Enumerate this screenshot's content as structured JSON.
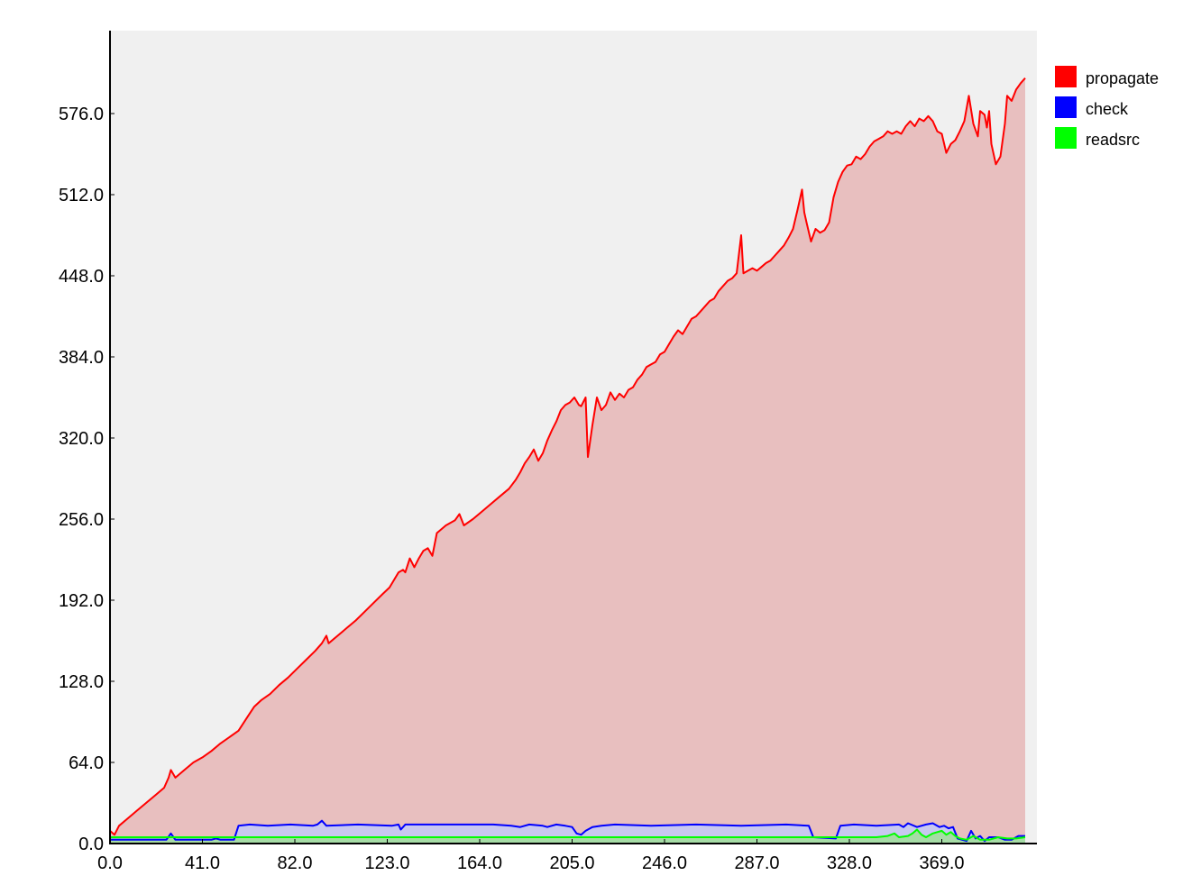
{
  "chart_data": {
    "type": "area",
    "title": "",
    "xlabel": "",
    "ylabel": "",
    "xlim": [
      0,
      410
    ],
    "ylim": [
      0,
      630
    ],
    "x_ticks": [
      "0.0",
      "41.0",
      "82.0",
      "123.0",
      "164.0",
      "205.0",
      "246.0",
      "287.0",
      "328.0",
      "369.0"
    ],
    "y_ticks": [
      "0.0",
      "64.0",
      "128.0",
      "192.0",
      "256.0",
      "320.0",
      "384.0",
      "448.0",
      "512.0",
      "576.0"
    ],
    "legend_position": "top-right",
    "background": "#f0f0f0",
    "series": [
      {
        "name": "propagate",
        "color": "#ff0000",
        "fill": "#e8bfbf",
        "points": [
          [
            0,
            10
          ],
          [
            2,
            7
          ],
          [
            4,
            14
          ],
          [
            8,
            20
          ],
          [
            12,
            26
          ],
          [
            16,
            32
          ],
          [
            20,
            38
          ],
          [
            24,
            44
          ],
          [
            26,
            52
          ],
          [
            27,
            58
          ],
          [
            29,
            52
          ],
          [
            33,
            58
          ],
          [
            37,
            64
          ],
          [
            41,
            68
          ],
          [
            45,
            73
          ],
          [
            49,
            79
          ],
          [
            53,
            84
          ],
          [
            57,
            89
          ],
          [
            61,
            100
          ],
          [
            64,
            108
          ],
          [
            67,
            113
          ],
          [
            71,
            118
          ],
          [
            75,
            125
          ],
          [
            79,
            131
          ],
          [
            83,
            138
          ],
          [
            87,
            145
          ],
          [
            91,
            152
          ],
          [
            94,
            158
          ],
          [
            96,
            164
          ],
          [
            97,
            158
          ],
          [
            101,
            164
          ],
          [
            105,
            170
          ],
          [
            109,
            176
          ],
          [
            113,
            183
          ],
          [
            117,
            190
          ],
          [
            121,
            197
          ],
          [
            124,
            202
          ],
          [
            126,
            208
          ],
          [
            128,
            214
          ],
          [
            130,
            216
          ],
          [
            131,
            214
          ],
          [
            133,
            225
          ],
          [
            135,
            218
          ],
          [
            137,
            225
          ],
          [
            139,
            231
          ],
          [
            141,
            233
          ],
          [
            143,
            227
          ],
          [
            145,
            245
          ],
          [
            149,
            251
          ],
          [
            153,
            255
          ],
          [
            155,
            260
          ],
          [
            157,
            251
          ],
          [
            161,
            256
          ],
          [
            165,
            262
          ],
          [
            169,
            268
          ],
          [
            173,
            274
          ],
          [
            177,
            280
          ],
          [
            180,
            287
          ],
          [
            182,
            293
          ],
          [
            184,
            300
          ],
          [
            186,
            305
          ],
          [
            188,
            311
          ],
          [
            190,
            302
          ],
          [
            192,
            308
          ],
          [
            194,
            318
          ],
          [
            196,
            326
          ],
          [
            198,
            333
          ],
          [
            200,
            342
          ],
          [
            202,
            346
          ],
          [
            204,
            348
          ],
          [
            206,
            352
          ],
          [
            208,
            346
          ],
          [
            209,
            345
          ],
          [
            211,
            352
          ],
          [
            212,
            305
          ],
          [
            214,
            330
          ],
          [
            216,
            352
          ],
          [
            218,
            342
          ],
          [
            220,
            346
          ],
          [
            222,
            356
          ],
          [
            224,
            350
          ],
          [
            226,
            355
          ],
          [
            228,
            352
          ],
          [
            230,
            358
          ],
          [
            232,
            360
          ],
          [
            234,
            366
          ],
          [
            236,
            370
          ],
          [
            238,
            376
          ],
          [
            240,
            378
          ],
          [
            242,
            380
          ],
          [
            244,
            386
          ],
          [
            246,
            388
          ],
          [
            248,
            394
          ],
          [
            250,
            400
          ],
          [
            252,
            405
          ],
          [
            254,
            402
          ],
          [
            256,
            408
          ],
          [
            258,
            414
          ],
          [
            260,
            416
          ],
          [
            262,
            420
          ],
          [
            264,
            424
          ],
          [
            266,
            428
          ],
          [
            268,
            430
          ],
          [
            270,
            436
          ],
          [
            272,
            440
          ],
          [
            274,
            444
          ],
          [
            276,
            446
          ],
          [
            278,
            450
          ],
          [
            280,
            480
          ],
          [
            281,
            450
          ],
          [
            283,
            452
          ],
          [
            285,
            454
          ],
          [
            287,
            452
          ],
          [
            289,
            455
          ],
          [
            291,
            458
          ],
          [
            293,
            460
          ],
          [
            295,
            464
          ],
          [
            297,
            468
          ],
          [
            299,
            472
          ],
          [
            301,
            478
          ],
          [
            303,
            485
          ],
          [
            305,
            500
          ],
          [
            307,
            516
          ],
          [
            308,
            498
          ],
          [
            309,
            490
          ],
          [
            311,
            475
          ],
          [
            313,
            485
          ],
          [
            315,
            482
          ],
          [
            317,
            484
          ],
          [
            319,
            490
          ],
          [
            321,
            510
          ],
          [
            323,
            522
          ],
          [
            325,
            530
          ],
          [
            327,
            535
          ],
          [
            329,
            536
          ],
          [
            331,
            542
          ],
          [
            333,
            540
          ],
          [
            335,
            544
          ],
          [
            337,
            550
          ],
          [
            339,
            554
          ],
          [
            341,
            556
          ],
          [
            343,
            558
          ],
          [
            345,
            562
          ],
          [
            347,
            560
          ],
          [
            349,
            562
          ],
          [
            351,
            560
          ],
          [
            353,
            566
          ],
          [
            355,
            570
          ],
          [
            357,
            566
          ],
          [
            359,
            572
          ],
          [
            361,
            570
          ],
          [
            363,
            574
          ],
          [
            365,
            570
          ],
          [
            367,
            562
          ],
          [
            369,
            560
          ],
          [
            371,
            545
          ],
          [
            373,
            552
          ],
          [
            375,
            555
          ],
          [
            377,
            562
          ],
          [
            379,
            570
          ],
          [
            381,
            590
          ],
          [
            383,
            568
          ],
          [
            385,
            558
          ],
          [
            386,
            578
          ],
          [
            388,
            575
          ],
          [
            389,
            565
          ],
          [
            390,
            578
          ],
          [
            391,
            552
          ],
          [
            393,
            536
          ],
          [
            395,
            542
          ],
          [
            397,
            568
          ],
          [
            398,
            590
          ],
          [
            400,
            586
          ],
          [
            402,
            595
          ],
          [
            404,
            600
          ],
          [
            406,
            604
          ]
        ]
      },
      {
        "name": "check",
        "color": "#0000ff",
        "fill": "#c8c8f0",
        "points": [
          [
            0,
            3
          ],
          [
            20,
            3
          ],
          [
            25,
            3
          ],
          [
            27,
            8
          ],
          [
            29,
            3
          ],
          [
            45,
            3
          ],
          [
            47,
            4
          ],
          [
            49,
            3
          ],
          [
            55,
            3
          ],
          [
            57,
            14
          ],
          [
            62,
            15
          ],
          [
            70,
            14
          ],
          [
            80,
            15
          ],
          [
            90,
            14
          ],
          [
            92,
            15
          ],
          [
            94,
            18
          ],
          [
            96,
            14
          ],
          [
            110,
            15
          ],
          [
            125,
            14
          ],
          [
            128,
            15
          ],
          [
            129,
            11
          ],
          [
            131,
            15
          ],
          [
            150,
            15
          ],
          [
            170,
            15
          ],
          [
            178,
            14
          ],
          [
            182,
            13
          ],
          [
            186,
            15
          ],
          [
            192,
            14
          ],
          [
            194,
            13
          ],
          [
            198,
            15
          ],
          [
            202,
            14
          ],
          [
            205,
            13
          ],
          [
            207,
            8
          ],
          [
            209,
            7
          ],
          [
            211,
            10
          ],
          [
            214,
            13
          ],
          [
            218,
            14
          ],
          [
            224,
            15
          ],
          [
            240,
            14
          ],
          [
            260,
            15
          ],
          [
            280,
            14
          ],
          [
            300,
            15
          ],
          [
            310,
            14
          ],
          [
            312,
            5
          ],
          [
            322,
            4
          ],
          [
            324,
            14
          ],
          [
            330,
            15
          ],
          [
            340,
            14
          ],
          [
            350,
            15
          ],
          [
            352,
            13
          ],
          [
            354,
            16
          ],
          [
            358,
            13
          ],
          [
            362,
            15
          ],
          [
            365,
            16
          ],
          [
            368,
            13
          ],
          [
            370,
            14
          ],
          [
            372,
            12
          ],
          [
            374,
            13
          ],
          [
            376,
            4
          ],
          [
            378,
            3
          ],
          [
            380,
            2
          ],
          [
            382,
            10
          ],
          [
            384,
            4
          ],
          [
            386,
            6
          ],
          [
            388,
            2
          ],
          [
            390,
            5
          ],
          [
            394,
            5
          ],
          [
            397,
            3
          ],
          [
            400,
            3
          ],
          [
            403,
            6
          ],
          [
            406,
            6
          ]
        ]
      },
      {
        "name": "readsrc",
        "color": "#00ff00",
        "fill": "#a6dca6",
        "points": [
          [
            0,
            5
          ],
          [
            20,
            5
          ],
          [
            40,
            5
          ],
          [
            60,
            5
          ],
          [
            80,
            5
          ],
          [
            100,
            5
          ],
          [
            120,
            5
          ],
          [
            140,
            5
          ],
          [
            160,
            5
          ],
          [
            180,
            5
          ],
          [
            200,
            5
          ],
          [
            220,
            5
          ],
          [
            240,
            5
          ],
          [
            260,
            5
          ],
          [
            280,
            5
          ],
          [
            300,
            5
          ],
          [
            320,
            5
          ],
          [
            340,
            5
          ],
          [
            345,
            6
          ],
          [
            348,
            8
          ],
          [
            350,
            5
          ],
          [
            354,
            6
          ],
          [
            356,
            8
          ],
          [
            358,
            11
          ],
          [
            360,
            7
          ],
          [
            362,
            5
          ],
          [
            365,
            8
          ],
          [
            367,
            9
          ],
          [
            369,
            10
          ],
          [
            371,
            7
          ],
          [
            373,
            9
          ],
          [
            375,
            6
          ],
          [
            377,
            4
          ],
          [
            380,
            3
          ],
          [
            383,
            6
          ],
          [
            386,
            3
          ],
          [
            390,
            3
          ],
          [
            394,
            5
          ],
          [
            398,
            4
          ],
          [
            402,
            4
          ],
          [
            406,
            5
          ]
        ]
      }
    ]
  }
}
